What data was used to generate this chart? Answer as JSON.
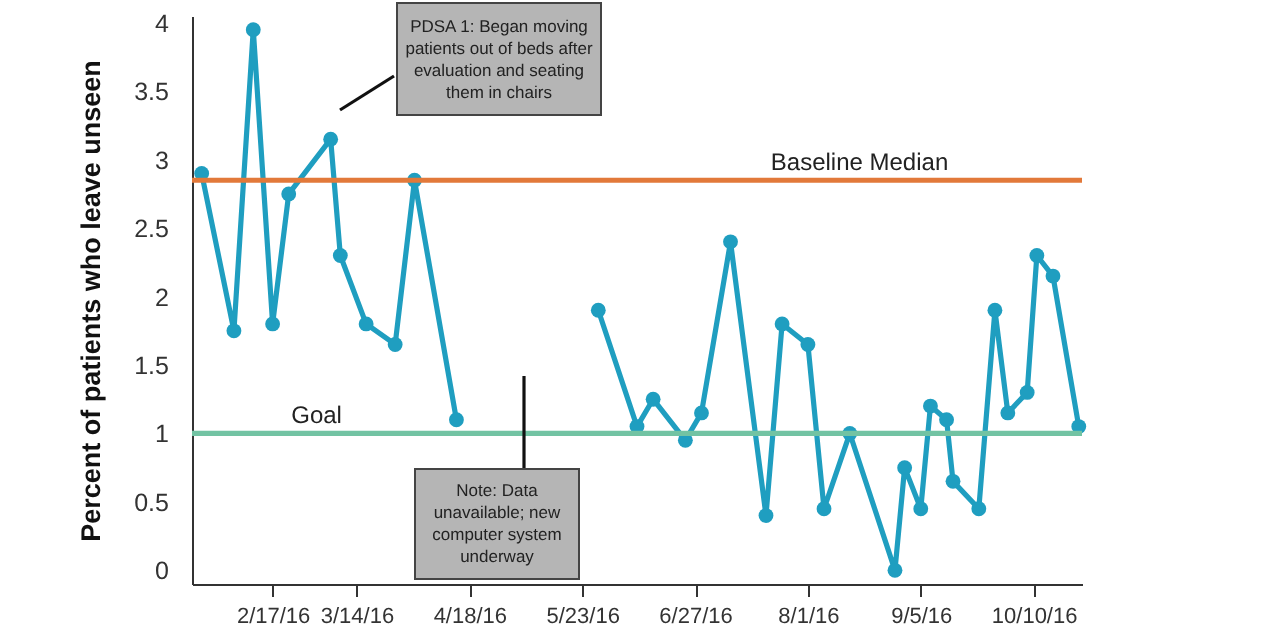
{
  "chart_data": {
    "type": "line",
    "ylabel": "Percent of patients who leave unseen",
    "x": [
      "2016-01-26",
      "2016-02-05",
      "2016-02-11",
      "2016-02-17",
      "2016-02-22",
      "2016-03-06",
      "2016-03-09",
      "2016-03-17",
      "2016-03-26",
      "2016-04-01",
      "2016-04-14",
      "2016-05-06",
      "2016-05-28",
      "2016-06-09",
      "2016-06-14",
      "2016-06-24",
      "2016-06-29",
      "2016-07-08",
      "2016-07-19",
      "2016-07-24",
      "2016-08-01",
      "2016-08-06",
      "2016-08-14",
      "2016-08-28",
      "2016-08-31",
      "2016-09-05",
      "2016-09-08",
      "2016-09-13",
      "2016-09-15",
      "2016-09-23",
      "2016-09-28",
      "2016-10-02",
      "2016-10-08",
      "2016-10-11",
      "2016-10-16",
      "2016-10-24"
    ],
    "series": [
      {
        "color": "#1f9ec0",
        "values": [
          2.9,
          1.75,
          3.95,
          1.8,
          2.75,
          3.15,
          2.3,
          1.8,
          1.65,
          2.85,
          1.1,
          null,
          1.9,
          1.05,
          1.25,
          0.95,
          1.15,
          2.4,
          0.4,
          1.8,
          1.65,
          0.45,
          1,
          0,
          0.75,
          0.45,
          1.2,
          1.1,
          0.65,
          0.45,
          1.9,
          1.15,
          1.3,
          2.3,
          2.15,
          1.05
        ]
      }
    ],
    "xlim": [
      "2016-01-23",
      "2016-10-25"
    ],
    "xticks": [
      {
        "value": "2016-02-17",
        "label": "2/17/16"
      },
      {
        "value": "2016-03-14",
        "label": "3/14/16"
      },
      {
        "value": "2016-04-18",
        "label": "4/18/16"
      },
      {
        "value": "2016-05-23",
        "label": "5/23/16"
      },
      {
        "value": "2016-06-27",
        "label": "6/27/16"
      },
      {
        "value": "2016-08-01",
        "label": "8/1/16"
      },
      {
        "value": "2016-09-05",
        "label": "9/5/16"
      },
      {
        "value": "2016-10-10",
        "label": "10/10/16"
      }
    ],
    "ylim": [
      -0.1,
      4.05
    ],
    "yticks": [
      0,
      0.5,
      1,
      1.5,
      2,
      2.5,
      3,
      3.5,
      4
    ],
    "ref_lines": [
      {
        "axis": "y",
        "value": 2.85,
        "label": "Baseline Median",
        "color": "#e2793a"
      },
      {
        "axis": "y",
        "value": 1,
        "label": "Goal",
        "color": "#72c3a3"
      }
    ],
    "annotations": [
      "PDSA 1: Began moving patients out of beds after evaluation and seating them in chairs",
      "Note: Data unavailable; new computer system underway"
    ],
    "marker": "circle",
    "grid": false
  }
}
